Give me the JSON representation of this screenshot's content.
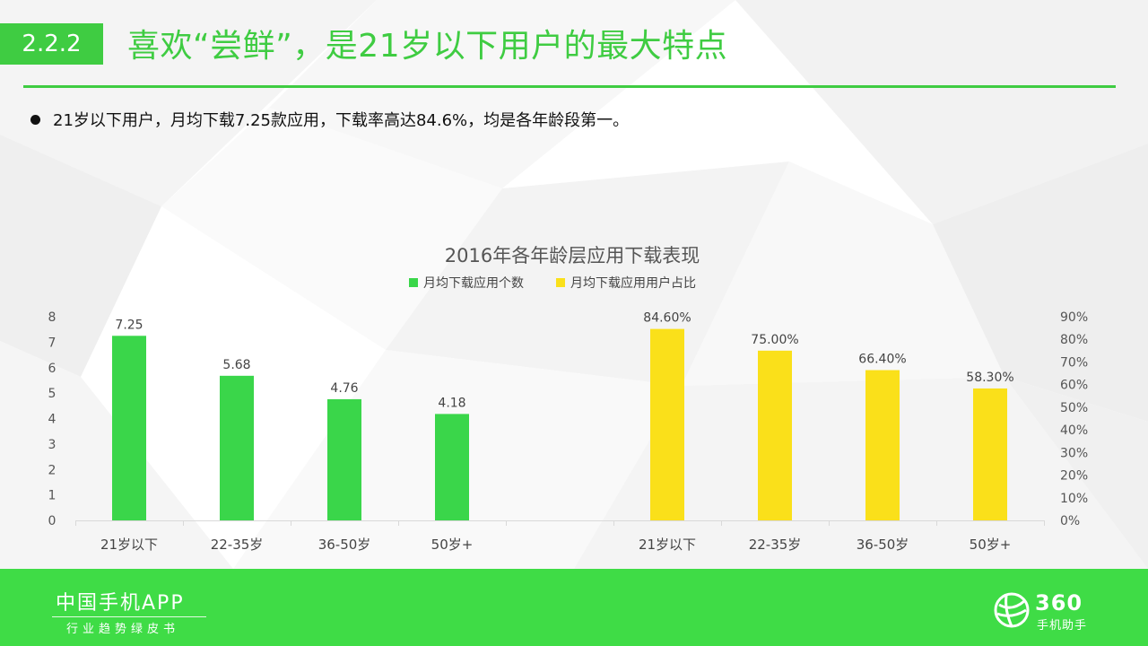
{
  "header": {
    "section_number": "2.2.2",
    "title": "喜欢“尝鲜”，是21岁以下用户的最大特点"
  },
  "bullet": {
    "text": "21岁以下用户，月均下载7.25款应用，下载率高达84.6%，均是各年龄段第一。"
  },
  "footer": {
    "brand_title": "中国手机APP",
    "brand_subtitle": "行业趋势绿皮书",
    "logo_number": "360",
    "logo_subtitle": "手机助手"
  },
  "colors": {
    "accent_green": "#3fcc42",
    "bar_green": "#3ad64a",
    "bar_yellow": "#fae01a",
    "footer_green": "#3fdc46"
  },
  "chart_data": {
    "type": "bar",
    "title": "2016年各年龄层应用下载表现",
    "legend_position": "top",
    "grid": false,
    "series": [
      {
        "name": "月均下载应用个数",
        "color": "#3ad64a",
        "axis": "left",
        "categories": [
          "21岁以下",
          "22-35岁",
          "36-50岁",
          "50岁+"
        ],
        "values": [
          7.25,
          5.68,
          4.76,
          4.18
        ],
        "value_labels": [
          "7.25",
          "5.68",
          "4.76",
          "4.18"
        ]
      },
      {
        "name": "月均下载应用用户占比",
        "color": "#fae01a",
        "axis": "right",
        "categories": [
          "21岁以下",
          "22-35岁",
          "36-50岁",
          "50岁+"
        ],
        "values": [
          84.6,
          75.0,
          66.4,
          58.3
        ],
        "value_labels": [
          "84.60%",
          "75.00%",
          "66.40%",
          "58.30%"
        ]
      }
    ],
    "left_axis": {
      "ylim": [
        0,
        8
      ],
      "ticks": [
        "0",
        "1",
        "2",
        "3",
        "4",
        "5",
        "6",
        "7",
        "8"
      ]
    },
    "right_axis": {
      "ylim": [
        0,
        90
      ],
      "ticks": [
        "0%",
        "10%",
        "20%",
        "30%",
        "40%",
        "50%",
        "60%",
        "70%",
        "80%",
        "90%"
      ]
    }
  }
}
